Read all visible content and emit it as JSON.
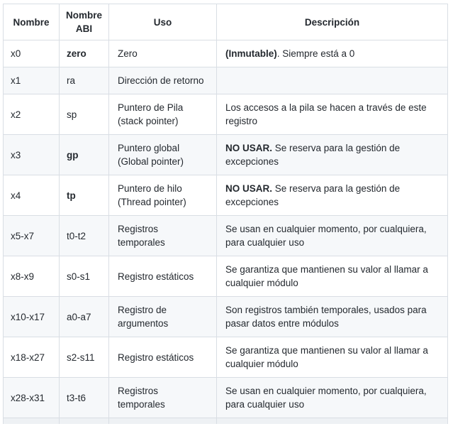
{
  "table": {
    "headers": [
      "Nombre",
      "Nombre ABI",
      "Uso",
      "Descripción"
    ],
    "rows": [
      {
        "nombre": "x0",
        "abi": "zero",
        "abi_bold": true,
        "uso": "Zero",
        "desc": [
          {
            "t": "(Inmutable)",
            "b": true
          },
          {
            "t": ". Siempre está a 0",
            "b": false
          }
        ]
      },
      {
        "nombre": "x1",
        "abi": "ra",
        "abi_bold": false,
        "uso": "Dirección de retorno",
        "desc": []
      },
      {
        "nombre": "x2",
        "abi": "sp",
        "abi_bold": false,
        "uso": "Puntero de Pila (stack pointer)",
        "desc": [
          {
            "t": "Los accesos a la pila se hacen a través de este registro",
            "b": false
          }
        ]
      },
      {
        "nombre": "x3",
        "abi": "gp",
        "abi_bold": true,
        "uso": "Puntero global (Global pointer)",
        "desc": [
          {
            "t": "NO USAR.",
            "b": true
          },
          {
            "t": " Se reserva para la gestión de excepciones",
            "b": false
          }
        ]
      },
      {
        "nombre": "x4",
        "abi": "tp",
        "abi_bold": true,
        "uso": "Puntero de hilo (Thread pointer)",
        "desc": [
          {
            "t": "NO USAR.",
            "b": true
          },
          {
            "t": " Se reserva para la gestión de excepciones",
            "b": false
          }
        ]
      },
      {
        "nombre": "x5-x7",
        "abi": "t0-t2",
        "abi_bold": false,
        "uso": "Registros temporales",
        "desc": [
          {
            "t": "Se usan en cualquier momento, por cualquiera, para cualquier uso",
            "b": false
          }
        ]
      },
      {
        "nombre": "x8-x9",
        "abi": "s0-s1",
        "abi_bold": false,
        "uso": "Registro estáticos",
        "desc": [
          {
            "t": "Se garantiza que mantienen su valor al llamar a cualquier módulo",
            "b": false
          }
        ]
      },
      {
        "nombre": "x10-x17",
        "abi": "a0-a7",
        "abi_bold": false,
        "uso": "Registro de argumentos",
        "desc": [
          {
            "t": "Son registros también temporales, usados para pasar datos entre módulos",
            "b": false
          }
        ]
      },
      {
        "nombre": "x18-x27",
        "abi": "s2-s11",
        "abi_bold": false,
        "uso": "Registro estáticos",
        "desc": [
          {
            "t": "Se garantiza que mantienen su valor al llamar a cualquier módulo",
            "b": false
          }
        ]
      },
      {
        "nombre": "x28-x31",
        "abi": "t3-t6",
        "abi_bold": false,
        "uso": "Registros temporales",
        "desc": [
          {
            "t": "Se usan en cualquier momento, por cualquiera, para cualquier uso",
            "b": false
          }
        ]
      }
    ]
  },
  "colors": {
    "stripe": "#f6f8fa",
    "border": "#d9dee4",
    "text": "#24292f",
    "cutoff_strip": "#eef1f4"
  }
}
